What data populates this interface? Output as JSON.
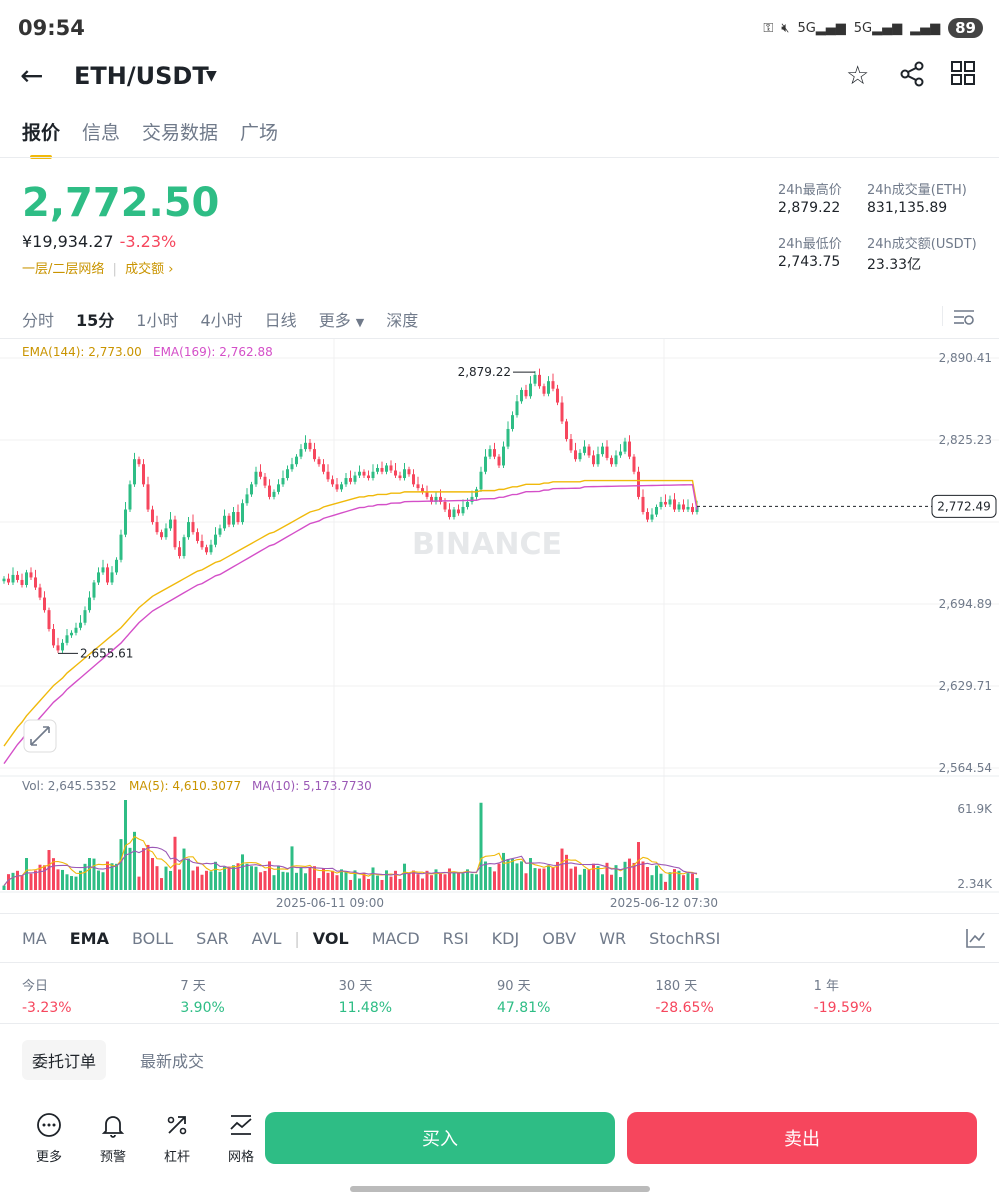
{
  "status": {
    "time": "09:54",
    "battery": "89"
  },
  "header": {
    "pair": "ETH/USDT"
  },
  "tabs": [
    {
      "label": "报价"
    },
    {
      "label": "信息"
    },
    {
      "label": "交易数据"
    },
    {
      "label": "广场"
    }
  ],
  "price": {
    "last": "2,772.50",
    "cny": "¥19,934.27",
    "change": "-3.23%",
    "network": "一层/二层网络",
    "volume_link": "成交额"
  },
  "stats": {
    "high_label": "24h最高价",
    "high": "2,879.22",
    "vol_eth_label": "24h成交量(ETH)",
    "vol_eth": "831,135.89",
    "low_label": "24h最低价",
    "low": "2,743.75",
    "vol_usdt_label": "24h成交额(USDT)",
    "vol_usdt": "23.33亿"
  },
  "intervals": [
    {
      "label": "分时"
    },
    {
      "label": "15分"
    },
    {
      "label": "1小时"
    },
    {
      "label": "4小时"
    },
    {
      "label": "日线"
    },
    {
      "label": "更多"
    },
    {
      "label": "深度"
    }
  ],
  "chart_data": {
    "type": "candlestick",
    "ema_legend": {
      "ema144": "EMA(144): 2,773.00",
      "ema169": "EMA(169): 2,762.88"
    },
    "price_ticks": [
      "2,890.41",
      "2,825.23",
      "2,694.89",
      "2,629.71",
      "2,564.54"
    ],
    "ylim": [
      2564.54,
      2890.41
    ],
    "high_marker": "2,879.22",
    "low_marker": "2,655.61",
    "current_price": "2,772.49",
    "watermark": "BINANCE",
    "vol_legend": {
      "vol": "Vol: 2,645.5352",
      "ma5": "MA(5): 4,610.3077",
      "ma10": "MA(10): 5,173.7730"
    },
    "vol_ticks": [
      "61.9K",
      "2.34K"
    ],
    "x_ticks": [
      "2025-06-11 09:00",
      "2025-06-12 07:30"
    ],
    "closes": [
      2715,
      2712,
      2718,
      2714,
      2710,
      2720,
      2716,
      2708,
      2700,
      2690,
      2675,
      2662,
      2658,
      2664,
      2670,
      2672,
      2676,
      2680,
      2690,
      2700,
      2712,
      2720,
      2724,
      2712,
      2720,
      2730,
      2750,
      2770,
      2790,
      2810,
      2806,
      2790,
      2770,
      2760,
      2752,
      2748,
      2755,
      2762,
      2740,
      2733,
      2748,
      2760,
      2752,
      2745,
      2740,
      2736,
      2742,
      2750,
      2755,
      2765,
      2758,
      2768,
      2760,
      2775,
      2782,
      2790,
      2800,
      2796,
      2789,
      2780,
      2784,
      2790,
      2795,
      2802,
      2806,
      2812,
      2818,
      2823,
      2818,
      2810,
      2806,
      2800,
      2794,
      2790,
      2786,
      2790,
      2795,
      2792,
      2797,
      2800,
      2797,
      2795,
      2800,
      2803,
      2800,
      2805,
      2801,
      2797,
      2795,
      2802,
      2798,
      2790,
      2787,
      2784,
      2780,
      2776,
      2780,
      2776,
      2770,
      2764,
      2770,
      2767,
      2772,
      2776,
      2780,
      2786,
      2800,
      2812,
      2818,
      2812,
      2805,
      2820,
      2834,
      2845,
      2856,
      2865,
      2860,
      2870,
      2877,
      2868,
      2862,
      2872,
      2866,
      2855,
      2840,
      2826,
      2817,
      2810,
      2815,
      2820,
      2813,
      2806,
      2814,
      2820,
      2811,
      2806,
      2813,
      2816,
      2824,
      2812,
      2800,
      2780,
      2768,
      2762,
      2766,
      2772,
      2776,
      2774,
      2778,
      2770,
      2774,
      2770,
      2772,
      2768,
      2772
    ],
    "ema144": [
      2582,
      2587,
      2592,
      2597,
      2601,
      2606,
      2610,
      2614,
      2618,
      2622,
      2626,
      2630,
      2633,
      2636,
      2640,
      2643,
      2646,
      2649,
      2652,
      2655,
      2658,
      2661,
      2664,
      2667,
      2670,
      2673,
      2676,
      2680,
      2684,
      2688,
      2692,
      2695,
      2698,
      2701,
      2703,
      2705,
      2707,
      2709,
      2711,
      2713,
      2715,
      2717,
      2719,
      2721,
      2722,
      2724,
      2726,
      2728,
      2729,
      2731,
      2733,
      2735,
      2737,
      2739,
      2741,
      2743,
      2745,
      2747,
      2749,
      2751,
      2752,
      2754,
      2756,
      2758,
      2760,
      2762,
      2764,
      2766,
      2768,
      2769,
      2770,
      2772,
      2773,
      2774,
      2775,
      2776,
      2777,
      2778,
      2779,
      2780,
      2780,
      2781,
      2781,
      2782,
      2782,
      2782,
      2783,
      2783,
      2783,
      2784,
      2784,
      2784,
      2784,
      2784,
      2784,
      2784,
      2784,
      2784,
      2784,
      2784,
      2784,
      2784,
      2784,
      2784,
      2784,
      2784,
      2785,
      2785,
      2785,
      2785,
      2786,
      2786,
      2787,
      2788,
      2788,
      2789,
      2790,
      2790,
      2790,
      2790,
      2791,
      2791,
      2792,
      2792,
      2792,
      2792,
      2792,
      2792,
      2792,
      2793,
      2793,
      2793,
      2793,
      2793,
      2793,
      2793,
      2793,
      2793,
      2793,
      2793,
      2793,
      2793,
      2793,
      2793,
      2793,
      2793,
      2793,
      2793,
      2793,
      2793,
      2793,
      2793,
      2793,
      2793,
      2773
    ],
    "volume_max": 61.9
  },
  "indicators": [
    {
      "label": "MA"
    },
    {
      "label": "EMA"
    },
    {
      "label": "BOLL"
    },
    {
      "label": "SAR"
    },
    {
      "label": "AVL"
    },
    {
      "label": "VOL"
    },
    {
      "label": "MACD"
    },
    {
      "label": "RSI"
    },
    {
      "label": "KDJ"
    },
    {
      "label": "OBV"
    },
    {
      "label": "WR"
    },
    {
      "label": "StochRSI"
    }
  ],
  "performance": [
    {
      "label": "今日",
      "value": "-3.23%",
      "dir": "down"
    },
    {
      "label": "7 天",
      "value": "3.90%",
      "dir": "up"
    },
    {
      "label": "30 天",
      "value": "11.48%",
      "dir": "up"
    },
    {
      "label": "90 天",
      "value": "47.81%",
      "dir": "up"
    },
    {
      "label": "180 天",
      "value": "-28.65%",
      "dir": "down"
    },
    {
      "label": "1 年",
      "value": "-19.59%",
      "dir": "down"
    }
  ],
  "order_tabs": [
    {
      "label": "委托订单"
    },
    {
      "label": "最新成交"
    }
  ],
  "bottom": {
    "more": "更多",
    "alert": "预警",
    "leverage": "杠杆",
    "grid": "网格",
    "buy": "买入",
    "sell": "卖出"
  },
  "colors": {
    "up": "#2ebd85",
    "down": "#f6465d",
    "ema144": "#f0b90b",
    "ema169": "#d44fc8",
    "accent": "#f0b90b"
  }
}
